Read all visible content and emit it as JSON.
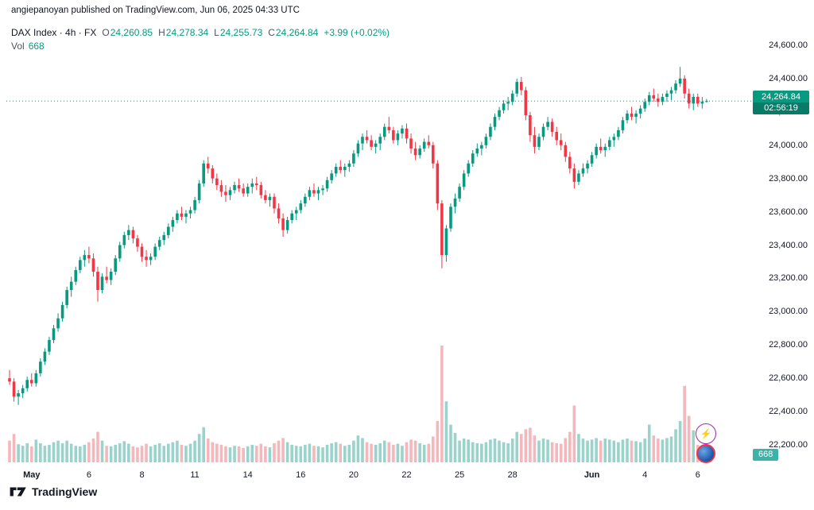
{
  "attribution": "angiepanoyan published on TradingView.com, Jun 06, 2025 04:33 UTC",
  "legend": {
    "title": "DAX Index · 4h · FX",
    "o_label": "O",
    "o": "24,260.85",
    "h_label": "H",
    "h": "24,278.34",
    "l_label": "L",
    "l": "24,255.73",
    "c_label": "C",
    "c": "24,264.84",
    "change": "+3.99 (+0.02%)",
    "vol_label": "Vol",
    "vol_value": "668"
  },
  "price_label": {
    "price": "24,264.84",
    "countdown": "02:56:19"
  },
  "volume_label": "668",
  "logo_text": "TradingView",
  "colors": {
    "up": "#089981",
    "down": "#f23645",
    "vol_up": "#9ad3cb",
    "vol_down": "#f4b7bc",
    "last_price_line": "#089981",
    "price_badge_bg": "#089981",
    "countdown_bg": "#077a68",
    "vol_badge_bg": "#3bb3a9",
    "axis_text": "#131722"
  },
  "axis": {
    "price_ticks": [
      {
        "label": "24,600.00",
        "value": 24600
      },
      {
        "label": "24,400.00",
        "value": 24400
      },
      {
        "label": "24,200.00",
        "value": 24200
      },
      {
        "label": "24,000.00",
        "value": 24000
      },
      {
        "label": "23,800.00",
        "value": 23800
      },
      {
        "label": "23,600.00",
        "value": 23600
      },
      {
        "label": "23,400.00",
        "value": 23400
      },
      {
        "label": "23,200.00",
        "value": 23200
      },
      {
        "label": "23,000.00",
        "value": 23000
      },
      {
        "label": "22,800.00",
        "value": 22800
      },
      {
        "label": "22,600.00",
        "value": 22600
      },
      {
        "label": "22,400.00",
        "value": 22400
      },
      {
        "label": "22,200.00",
        "value": 22200
      }
    ],
    "time_ticks": [
      {
        "label": "May",
        "index": 5,
        "major": true
      },
      {
        "label": "6",
        "index": 18,
        "major": false
      },
      {
        "label": "8",
        "index": 30,
        "major": false
      },
      {
        "label": "11",
        "index": 42,
        "major": false
      },
      {
        "label": "14",
        "index": 54,
        "major": false
      },
      {
        "label": "16",
        "index": 66,
        "major": false
      },
      {
        "label": "20",
        "index": 78,
        "major": false
      },
      {
        "label": "22",
        "index": 90,
        "major": false
      },
      {
        "label": "25",
        "index": 102,
        "major": false
      },
      {
        "label": "28",
        "index": 114,
        "major": false
      },
      {
        "label": "Jun",
        "index": 132,
        "major": true
      },
      {
        "label": "4",
        "index": 144,
        "major": false
      },
      {
        "label": "6",
        "index": 156,
        "major": false
      }
    ]
  },
  "chart_data": {
    "type": "candlestick+volume",
    "title": "DAX Index 4h FX",
    "symbol": "DAX Index",
    "interval": "4h",
    "exchange": "FX",
    "last_price": 24264.84,
    "last_volume": 668,
    "price_range": [
      22200,
      24600
    ],
    "x_span": "May 1 2025 - Jun 6 2025, 4h bars",
    "candles": [
      [
        22600,
        22650,
        22560,
        22580
      ],
      [
        22580,
        22600,
        22460,
        22490
      ],
      [
        22490,
        22530,
        22440,
        22510
      ],
      [
        22510,
        22560,
        22480,
        22540
      ],
      [
        22540,
        22610,
        22520,
        22590
      ],
      [
        22590,
        22630,
        22550,
        22570
      ],
      [
        22570,
        22650,
        22550,
        22630
      ],
      [
        22630,
        22720,
        22610,
        22700
      ],
      [
        22700,
        22780,
        22680,
        22760
      ],
      [
        22760,
        22850,
        22740,
        22830
      ],
      [
        22830,
        22920,
        22810,
        22900
      ],
      [
        22900,
        22990,
        22880,
        22960
      ],
      [
        22960,
        23060,
        22940,
        23040
      ],
      [
        23040,
        23150,
        23020,
        23130
      ],
      [
        23130,
        23210,
        23090,
        23180
      ],
      [
        23180,
        23270,
        23160,
        23250
      ],
      [
        23250,
        23330,
        23230,
        23310
      ],
      [
        23310,
        23370,
        23270,
        23340
      ],
      [
        23340,
        23390,
        23290,
        23320
      ],
      [
        23320,
        23350,
        23210,
        23240
      ],
      [
        23240,
        23270,
        23060,
        23130
      ],
      [
        23130,
        23230,
        23110,
        23210
      ],
      [
        23210,
        23270,
        23170,
        23190
      ],
      [
        23190,
        23260,
        23160,
        23240
      ],
      [
        23240,
        23340,
        23220,
        23320
      ],
      [
        23320,
        23420,
        23300,
        23400
      ],
      [
        23400,
        23480,
        23380,
        23460
      ],
      [
        23460,
        23520,
        23430,
        23490
      ],
      [
        23490,
        23510,
        23410,
        23440
      ],
      [
        23440,
        23460,
        23360,
        23390
      ],
      [
        23390,
        23410,
        23300,
        23330
      ],
      [
        23330,
        23370,
        23270,
        23310
      ],
      [
        23310,
        23350,
        23280,
        23330
      ],
      [
        23330,
        23410,
        23310,
        23390
      ],
      [
        23390,
        23450,
        23370,
        23430
      ],
      [
        23430,
        23480,
        23400,
        23460
      ],
      [
        23460,
        23530,
        23440,
        23510
      ],
      [
        23510,
        23570,
        23480,
        23550
      ],
      [
        23550,
        23610,
        23530,
        23590
      ],
      [
        23590,
        23630,
        23550,
        23570
      ],
      [
        23570,
        23610,
        23530,
        23590
      ],
      [
        23590,
        23630,
        23560,
        23610
      ],
      [
        23610,
        23690,
        23590,
        23670
      ],
      [
        23670,
        23790,
        23650,
        23770
      ],
      [
        23770,
        23910,
        23750,
        23890
      ],
      [
        23890,
        23930,
        23830,
        23860
      ],
      [
        23860,
        23880,
        23770,
        23800
      ],
      [
        23800,
        23830,
        23730,
        23760
      ],
      [
        23760,
        23790,
        23690,
        23720
      ],
      [
        23720,
        23760,
        23660,
        23700
      ],
      [
        23700,
        23750,
        23670,
        23730
      ],
      [
        23730,
        23780,
        23710,
        23760
      ],
      [
        23760,
        23800,
        23720,
        23740
      ],
      [
        23740,
        23770,
        23690,
        23710
      ],
      [
        23710,
        23770,
        23690,
        23750
      ],
      [
        23750,
        23800,
        23710,
        23770
      ],
      [
        23770,
        23810,
        23730,
        23760
      ],
      [
        23760,
        23780,
        23680,
        23700
      ],
      [
        23700,
        23730,
        23650,
        23670
      ],
      [
        23670,
        23710,
        23630,
        23690
      ],
      [
        23690,
        23710,
        23590,
        23620
      ],
      [
        23620,
        23650,
        23530,
        23560
      ],
      [
        23560,
        23590,
        23450,
        23490
      ],
      [
        23490,
        23570,
        23470,
        23550
      ],
      [
        23550,
        23610,
        23530,
        23590
      ],
      [
        23590,
        23630,
        23550,
        23610
      ],
      [
        23610,
        23670,
        23590,
        23650
      ],
      [
        23650,
        23710,
        23630,
        23690
      ],
      [
        23690,
        23750,
        23670,
        23730
      ],
      [
        23730,
        23770,
        23690,
        23710
      ],
      [
        23710,
        23750,
        23670,
        23730
      ],
      [
        23730,
        23760,
        23700,
        23740
      ],
      [
        23740,
        23810,
        23720,
        23790
      ],
      [
        23790,
        23850,
        23770,
        23830
      ],
      [
        23830,
        23890,
        23810,
        23870
      ],
      [
        23870,
        23910,
        23830,
        23850
      ],
      [
        23850,
        23890,
        23810,
        23870
      ],
      [
        23870,
        23910,
        23840,
        23890
      ],
      [
        23890,
        23970,
        23870,
        23950
      ],
      [
        23950,
        24030,
        23930,
        24010
      ],
      [
        24010,
        24070,
        23970,
        24050
      ],
      [
        24050,
        24090,
        24010,
        24030
      ],
      [
        24030,
        24060,
        23970,
        23990
      ],
      [
        23990,
        24030,
        23950,
        24010
      ],
      [
        24010,
        24070,
        23970,
        24050
      ],
      [
        24050,
        24130,
        24030,
        24110
      ],
      [
        24110,
        24170,
        24070,
        24090
      ],
      [
        24090,
        24110,
        24010,
        24030
      ],
      [
        24030,
        24090,
        24000,
        24070
      ],
      [
        24070,
        24120,
        24040,
        24100
      ],
      [
        24100,
        24130,
        24010,
        24040
      ],
      [
        24040,
        24070,
        23950,
        23980
      ],
      [
        23980,
        24020,
        23910,
        23940
      ],
      [
        23940,
        24000,
        23920,
        23980
      ],
      [
        23980,
        24040,
        23960,
        24020
      ],
      [
        24020,
        24060,
        23980,
        24000
      ],
      [
        24000,
        24020,
        23860,
        23890
      ],
      [
        23890,
        23910,
        23610,
        23650
      ],
      [
        23650,
        23670,
        23260,
        23340
      ],
      [
        23340,
        23520,
        23300,
        23500
      ],
      [
        23500,
        23650,
        23480,
        23630
      ],
      [
        23630,
        23710,
        23590,
        23680
      ],
      [
        23680,
        23770,
        23660,
        23750
      ],
      [
        23750,
        23850,
        23730,
        23830
      ],
      [
        23830,
        23910,
        23810,
        23890
      ],
      [
        23890,
        23970,
        23870,
        23950
      ],
      [
        23950,
        24010,
        23930,
        23980
      ],
      [
        23980,
        24020,
        23940,
        24000
      ],
      [
        24000,
        24070,
        23980,
        24050
      ],
      [
        24050,
        24130,
        24030,
        24110
      ],
      [
        24110,
        24190,
        24090,
        24170
      ],
      [
        24170,
        24230,
        24150,
        24210
      ],
      [
        24210,
        24270,
        24190,
        24250
      ],
      [
        24250,
        24290,
        24210,
        24260
      ],
      [
        24260,
        24330,
        24240,
        24310
      ],
      [
        24310,
        24400,
        24290,
        24380
      ],
      [
        24380,
        24410,
        24300,
        24330
      ],
      [
        24330,
        24350,
        24150,
        24180
      ],
      [
        24180,
        24200,
        24020,
        24060
      ],
      [
        24060,
        24110,
        23950,
        23990
      ],
      [
        23990,
        24070,
        23970,
        24050
      ],
      [
        24050,
        24130,
        24030,
        24110
      ],
      [
        24110,
        24170,
        24090,
        24140
      ],
      [
        24140,
        24160,
        24050,
        24080
      ],
      [
        24080,
        24110,
        24000,
        24030
      ],
      [
        24030,
        24070,
        23970,
        24000
      ],
      [
        24000,
        24020,
        23900,
        23930
      ],
      [
        23930,
        23960,
        23830,
        23860
      ],
      [
        23860,
        23890,
        23740,
        23780
      ],
      [
        23780,
        23850,
        23760,
        23830
      ],
      [
        23830,
        23890,
        23810,
        23860
      ],
      [
        23860,
        23910,
        23830,
        23890
      ],
      [
        23890,
        23960,
        23870,
        23940
      ],
      [
        23940,
        24010,
        23920,
        23990
      ],
      [
        23990,
        24040,
        23950,
        23970
      ],
      [
        23970,
        24010,
        23930,
        23990
      ],
      [
        23990,
        24050,
        23970,
        24030
      ],
      [
        24030,
        24070,
        23990,
        24050
      ],
      [
        24050,
        24110,
        24030,
        24090
      ],
      [
        24090,
        24170,
        24070,
        24150
      ],
      [
        24150,
        24210,
        24130,
        24190
      ],
      [
        24190,
        24230,
        24150,
        24170
      ],
      [
        24170,
        24210,
        24130,
        24190
      ],
      [
        24190,
        24240,
        24160,
        24220
      ],
      [
        24220,
        24280,
        24200,
        24260
      ],
      [
        24260,
        24320,
        24240,
        24300
      ],
      [
        24300,
        24340,
        24260,
        24280
      ],
      [
        24280,
        24310,
        24230,
        24260
      ],
      [
        24260,
        24310,
        24240,
        24290
      ],
      [
        24290,
        24330,
        24260,
        24310
      ],
      [
        24310,
        24350,
        24270,
        24330
      ],
      [
        24330,
        24390,
        24310,
        24370
      ],
      [
        24370,
        24470,
        24350,
        24400
      ],
      [
        24400,
        24420,
        24280,
        24310
      ],
      [
        24310,
        24340,
        24220,
        24250
      ],
      [
        24250,
        24310,
        24210,
        24290
      ],
      [
        24290,
        24310,
        24230,
        24250
      ],
      [
        24250,
        24290,
        24220,
        24261
      ],
      [
        24261,
        24278,
        24256,
        24264.84
      ]
    ],
    "volumes": [
      2100,
      2750,
      1750,
      1600,
      1850,
      1550,
      2200,
      1850,
      1600,
      1700,
      1950,
      2100,
      1850,
      2100,
      1800,
      1600,
      1550,
      1700,
      1950,
      2300,
      2950,
      2100,
      1600,
      1550,
      1700,
      1850,
      2050,
      1800,
      1550,
      1450,
      1600,
      1800,
      1550,
      1700,
      1850,
      1600,
      1800,
      1950,
      2100,
      1700,
      1600,
      1800,
      2100,
      2750,
      3400,
      2300,
      1950,
      1800,
      1700,
      1550,
      1450,
      1600,
      1550,
      1400,
      1550,
      1700,
      1600,
      1800,
      1550,
      1450,
      1850,
      2100,
      2350,
      1950,
      1700,
      1600,
      1550,
      1700,
      1800,
      1600,
      1550,
      1450,
      1700,
      1850,
      1950,
      1800,
      1600,
      1700,
      2100,
      2600,
      2350,
      1950,
      1800,
      1700,
      1850,
      2100,
      1950,
      1700,
      1800,
      1600,
      1950,
      2200,
      2100,
      1850,
      1700,
      1800,
      2500,
      4000,
      11300,
      5900,
      3650,
      2850,
      2100,
      2300,
      2200,
      1950,
      1850,
      1800,
      1950,
      2200,
      2300,
      2100,
      1950,
      1850,
      2300,
      2950,
      2750,
      3200,
      3350,
      2600,
      2100,
      2300,
      2200,
      1950,
      1850,
      1800,
      2350,
      2950,
      5500,
      2750,
      2300,
      2100,
      2200,
      2350,
      2100,
      2300,
      2200,
      2100,
      1950,
      2200,
      2300,
      2100,
      2050,
      1950,
      2300,
      3650,
      2600,
      2300,
      2200,
      2350,
      2500,
      3200,
      4000,
      7400,
      4500,
      3100,
      1700,
      1550,
      668
    ]
  }
}
